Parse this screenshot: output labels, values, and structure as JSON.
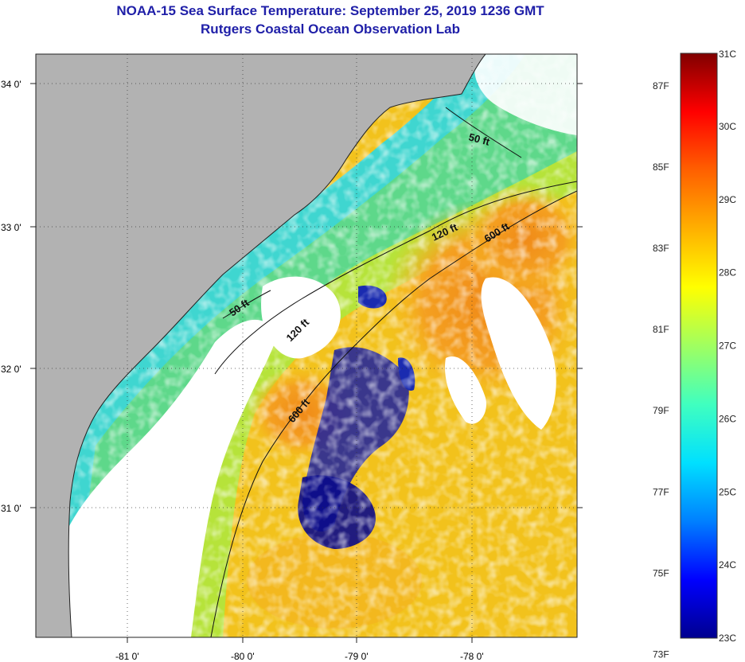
{
  "title_line1": "NOAA-15 Sea Surface Temperature:  September 25, 2019 1236 GMT",
  "title_line2": "Rutgers Coastal Ocean Observation Lab",
  "lat_labels": [
    "34 0'",
    "33 0'",
    "32 0'",
    "31 0'"
  ],
  "lon_labels": [
    "-81 0'",
    "-80 0'",
    "-79 0'",
    "-78 0'"
  ],
  "contour_labels": {
    "c50_north": "50 ft",
    "c50_south": "50 ft",
    "c120_north": "120 ft",
    "c120_south": "120 ft",
    "c600_north": "600 ft",
    "c600_south": "600 ft"
  },
  "colorbar": {
    "fahrenheit": [
      "87F",
      "85F",
      "83F",
      "81F",
      "79F",
      "77F",
      "75F",
      "73F"
    ],
    "celsius": [
      "31C",
      "30C",
      "29C",
      "28C",
      "27C",
      "26C",
      "25C",
      "24C",
      "23C"
    ],
    "range_c": [
      23,
      31
    ],
    "colors": [
      "#00008f",
      "#0000ff",
      "#0080ff",
      "#00e0ff",
      "#40ffbf",
      "#a0ff60",
      "#ffff00",
      "#ffb000",
      "#ff6000",
      "#ff0000",
      "#800000"
    ]
  },
  "land_color": "#b2b2b2"
}
